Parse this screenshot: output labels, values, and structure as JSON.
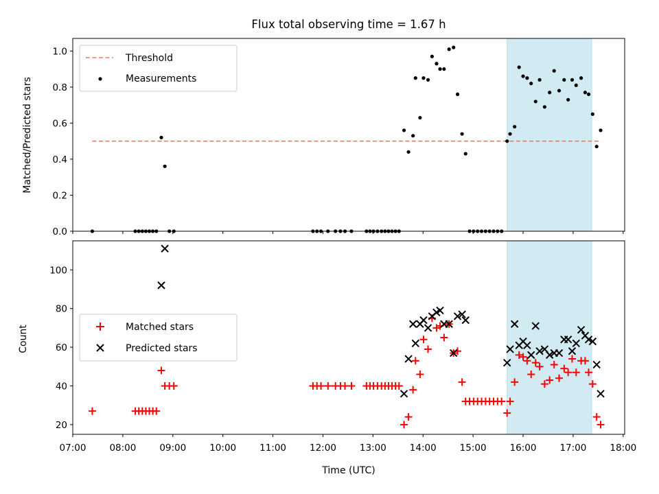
{
  "chart_data": [
    {
      "type": "scatter",
      "title": "Flux total observing time = 1.67 h",
      "xlabel": "",
      "ylabel": "Matched/Predicted stars",
      "xlim": [
        7.0,
        18.03
      ],
      "ylim": [
        0.0,
        1.07
      ],
      "yticks": [
        0.0,
        0.2,
        0.4,
        0.6,
        0.8,
        1.0
      ],
      "ytick_labels": [
        "0.0",
        "0.2",
        "0.4",
        "0.6",
        "0.8",
        "1.0"
      ],
      "highlight_span": [
        15.68,
        17.37
      ],
      "highlight_color": "#add8e6",
      "legend": {
        "placement": "upper-left",
        "entries": [
          "Threshold",
          "Measurements"
        ]
      },
      "series": [
        {
          "name": "Threshold",
          "style": "dashed-line",
          "color": "#ff7070",
          "x": [
            7.39,
            17.52
          ],
          "y": [
            0.5,
            0.5
          ]
        },
        {
          "name": "Measurements",
          "style": "dot",
          "color": "#000000",
          "x": [
            7.39,
            8.25,
            8.32,
            8.39,
            8.46,
            8.53,
            8.6,
            8.67,
            8.77,
            8.84,
            8.93,
            9.02,
            11.8,
            11.88,
            11.96,
            12.1,
            12.25,
            12.35,
            12.44,
            12.57,
            12.87,
            12.94,
            13.01,
            13.09,
            13.17,
            13.24,
            13.31,
            13.38,
            13.45,
            13.52,
            13.62,
            13.71,
            13.8,
            13.85,
            13.94,
            14.01,
            14.1,
            14.18,
            14.27,
            14.34,
            14.42,
            14.52,
            14.61,
            14.69,
            14.78,
            14.85,
            14.93,
            15.01,
            15.09,
            15.17,
            15.25,
            15.33,
            15.41,
            15.49,
            15.57,
            15.68,
            15.74,
            15.83,
            15.92,
            16.0,
            16.08,
            16.16,
            16.25,
            16.33,
            16.43,
            16.53,
            16.62,
            16.72,
            16.82,
            16.9,
            16.98,
            17.06,
            17.16,
            17.24,
            17.31,
            17.39,
            17.47,
            17.55
          ],
          "y": [
            0.0,
            0.0,
            0.0,
            0.0,
            0.0,
            0.0,
            0.0,
            0.0,
            0.52,
            0.36,
            0.0,
            0.0,
            0.0,
            0.0,
            0.0,
            0.0,
            0.0,
            0.0,
            0.0,
            0.0,
            0.0,
            0.0,
            0.0,
            0.0,
            0.0,
            0.0,
            0.0,
            0.0,
            0.0,
            0.0,
            0.56,
            0.44,
            0.53,
            0.85,
            0.63,
            0.85,
            0.84,
            0.97,
            0.93,
            0.9,
            0.9,
            1.01,
            1.02,
            0.76,
            0.54,
            0.43,
            0.0,
            0.0,
            0.0,
            0.0,
            0.0,
            0.0,
            0.0,
            0.0,
            0.0,
            0.5,
            0.54,
            0.58,
            0.91,
            0.86,
            0.85,
            0.82,
            0.72,
            0.84,
            0.69,
            0.77,
            0.89,
            0.78,
            0.84,
            0.73,
            0.84,
            0.81,
            0.85,
            0.77,
            0.76,
            0.65,
            0.47,
            0.56
          ]
        }
      ]
    },
    {
      "type": "scatter",
      "title": "",
      "xlabel": "Time (UTC)",
      "ylabel": "Count",
      "xlim": [
        7.0,
        18.03
      ],
      "ylim": [
        15,
        115
      ],
      "yticks": [
        20,
        40,
        60,
        80,
        100
      ],
      "ytick_labels": [
        "20",
        "40",
        "60",
        "80",
        "100"
      ],
      "xticks": [
        7,
        8,
        9,
        10,
        11,
        12,
        13,
        14,
        15,
        16,
        17,
        18
      ],
      "xtick_labels": [
        "07:00",
        "08:00",
        "09:00",
        "10:00",
        "11:00",
        "12:00",
        "13:00",
        "14:00",
        "15:00",
        "16:00",
        "17:00",
        "18:00"
      ],
      "highlight_span": [
        15.68,
        17.37
      ],
      "highlight_color": "#add8e6",
      "legend": {
        "placement": "center-left",
        "entries": [
          "Matched stars",
          "Predicted stars"
        ]
      },
      "series": [
        {
          "name": "Matched stars",
          "marker": "plus",
          "color": "#ff0000",
          "x": [
            7.39,
            8.25,
            8.32,
            8.39,
            8.46,
            8.53,
            8.6,
            8.67,
            8.77,
            8.84,
            8.93,
            9.02,
            11.8,
            11.88,
            11.96,
            12.1,
            12.25,
            12.35,
            12.44,
            12.57,
            12.87,
            12.94,
            13.01,
            13.09,
            13.17,
            13.24,
            13.31,
            13.38,
            13.45,
            13.52,
            13.62,
            13.71,
            13.8,
            13.85,
            13.94,
            14.01,
            14.1,
            14.18,
            14.27,
            14.34,
            14.42,
            14.52,
            14.61,
            14.69,
            14.78,
            14.85,
            14.93,
            15.01,
            15.09,
            15.17,
            15.25,
            15.33,
            15.41,
            15.49,
            15.57,
            15.68,
            15.74,
            15.83,
            15.92,
            16.0,
            16.08,
            16.16,
            16.25,
            16.33,
            16.43,
            16.53,
            16.62,
            16.72,
            16.82,
            16.9,
            16.98,
            17.06,
            17.16,
            17.24,
            17.31,
            17.39,
            17.47,
            17.55
          ],
          "y": [
            27,
            27,
            27,
            27,
            27,
            27,
            27,
            27,
            48,
            40,
            40,
            40,
            40,
            40,
            40,
            40,
            40,
            40,
            40,
            40,
            40,
            40,
            40,
            40,
            40,
            40,
            40,
            40,
            40,
            40,
            20,
            24,
            38,
            53,
            46,
            64,
            59,
            75,
            70,
            71,
            65,
            72,
            57,
            58,
            42,
            32,
            32,
            32,
            32,
            32,
            32,
            32,
            32,
            32,
            32,
            26,
            32,
            42,
            56,
            55,
            53,
            46,
            52,
            50,
            41,
            43,
            51,
            44,
            49,
            47,
            54,
            47,
            53,
            53,
            47,
            41,
            24,
            20
          ]
        },
        {
          "name": "Predicted stars",
          "marker": "x",
          "color": "#000000",
          "x": [
            8.77,
            8.84,
            13.62,
            13.71,
            13.8,
            13.85,
            13.94,
            14.01,
            14.1,
            14.18,
            14.27,
            14.34,
            14.42,
            14.52,
            14.61,
            14.69,
            14.78,
            14.85,
            15.68,
            15.74,
            15.83,
            15.92,
            16.0,
            16.08,
            16.16,
            16.25,
            16.33,
            16.43,
            16.53,
            16.62,
            16.72,
            16.82,
            16.9,
            16.98,
            17.06,
            17.16,
            17.24,
            17.31,
            17.39,
            17.47,
            17.55
          ],
          "y": [
            92,
            111,
            36,
            54,
            72,
            62,
            72,
            74,
            70,
            76,
            78,
            79,
            72,
            72,
            57,
            76,
            77,
            74,
            52,
            59,
            72,
            61,
            63,
            61,
            56,
            71,
            58,
            59,
            56,
            57,
            57,
            64,
            64,
            58,
            62,
            69,
            66,
            64,
            63,
            51,
            36
          ]
        }
      ]
    }
  ]
}
